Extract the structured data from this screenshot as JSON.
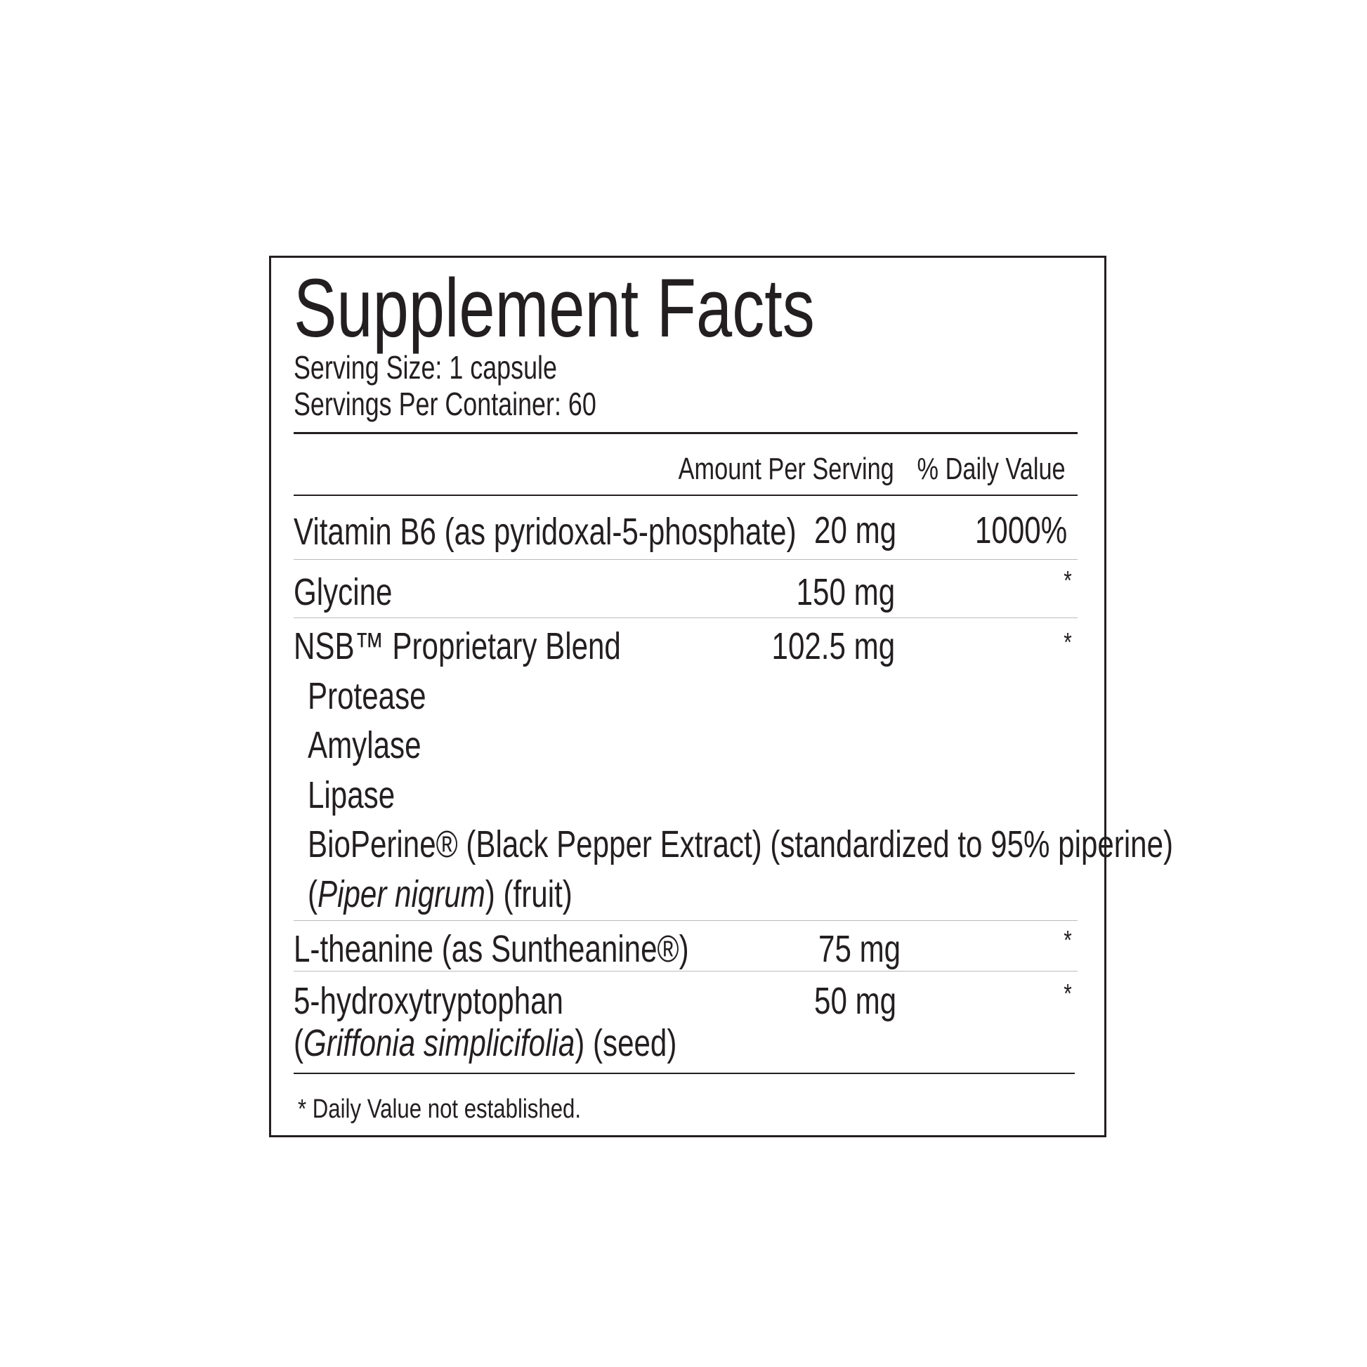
{
  "title": "Supplement Facts",
  "serving_size": "Serving Size: 1 capsule",
  "servings_per_container": "Servings Per Container: 60",
  "headers": {
    "amount": "Amount Per Serving",
    "dv": "% Daily Value"
  },
  "rows": [
    {
      "name": "Vitamin B6 (as pyridoxal-5-phosphate)",
      "amount": "20 mg",
      "dv": "1000%"
    },
    {
      "name": "Glycine",
      "amount": "150 mg",
      "dv": "*"
    },
    {
      "name": "NSB™ Proprietary Blend",
      "amount": "102.5 mg",
      "dv": "*",
      "sub_items": [
        "Protease",
        "Amylase",
        "Lipase",
        "BioPerine® (Black Pepper Extract) (standardized to 95% piperine)"
      ],
      "sub_last": {
        "open": "(",
        "latin": "Piper nigrum",
        "rest": ") (fruit)"
      }
    },
    {
      "name": "L-theanine (as Suntheanine®)",
      "amount": "75 mg",
      "dv": "*"
    },
    {
      "name": "5-hydroxytryptophan",
      "amount": "50 mg",
      "dv": "*",
      "line2": {
        "open": "(",
        "latin": "Griffonia simplicifolia",
        "rest": ") (seed)"
      }
    }
  ],
  "footnote": "* Daily Value not established."
}
